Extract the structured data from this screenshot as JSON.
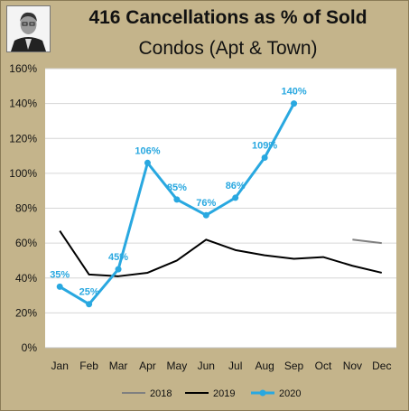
{
  "title": "416 Cancellations as % of Sold",
  "subtitle": "Condos (Apt & Town)",
  "colors": {
    "background": "#c4b48b",
    "plot": "#ffffff",
    "s2018": "#808080",
    "s2019": "#000000",
    "s2020": "#29a8e0"
  },
  "chart_data": {
    "type": "line",
    "title": "416 Cancellations as % of Sold",
    "subtitle": "Condos (Apt & Town)",
    "categories": [
      "Jan",
      "Feb",
      "Mar",
      "Apr",
      "May",
      "Jun",
      "Jul",
      "Aug",
      "Sep",
      "Oct",
      "Nov",
      "Dec"
    ],
    "ylim": [
      0,
      160
    ],
    "yticks": [
      0,
      20,
      40,
      60,
      80,
      100,
      120,
      140,
      160
    ],
    "ytick_labels": [
      "0%",
      "20%",
      "40%",
      "60%",
      "80%",
      "100%",
      "120%",
      "140%",
      "160%"
    ],
    "grid": "horizontal",
    "legend_position": "bottom",
    "series": [
      {
        "name": "2018",
        "color": "#808080",
        "markers": false,
        "values": [
          null,
          null,
          null,
          null,
          null,
          null,
          null,
          null,
          null,
          null,
          62,
          60
        ]
      },
      {
        "name": "2019",
        "color": "#000000",
        "markers": false,
        "values": [
          67,
          42,
          41,
          43,
          50,
          62,
          56,
          53,
          51,
          52,
          47,
          43
        ]
      },
      {
        "name": "2020",
        "color": "#29a8e0",
        "markers": true,
        "values": [
          35,
          25,
          45,
          106,
          85,
          76,
          86,
          109,
          140,
          null,
          null,
          null
        ],
        "labels": [
          "35%",
          "25%",
          "45%",
          "106%",
          "85%",
          "76%",
          "86%",
          "109%",
          "140%",
          "",
          "",
          ""
        ]
      }
    ]
  }
}
